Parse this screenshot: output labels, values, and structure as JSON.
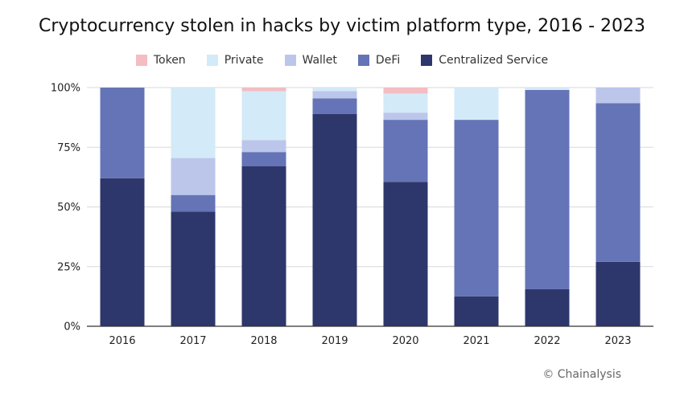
{
  "chart_data": {
    "type": "bar",
    "stacked": true,
    "normalized": true,
    "title": "Cryptocurrency stolen in hacks by victim platform type, 2016 - 2023",
    "categories": [
      "2016",
      "2017",
      "2018",
      "2019",
      "2020",
      "2021",
      "2022",
      "2023"
    ],
    "y_ticks": [
      "0%",
      "25%",
      "50%",
      "75%",
      "100%"
    ],
    "ylim": [
      0,
      100
    ],
    "grid": true,
    "legend_position": "top",
    "series": [
      {
        "name": "Centralized Service",
        "color": "#2d376b",
        "values": [
          62,
          48,
          67,
          89,
          60.5,
          12.5,
          15.5,
          27
        ]
      },
      {
        "name": "DeFi",
        "color": "#6474b6",
        "values": [
          38,
          7,
          6,
          6.5,
          26,
          74,
          83.5,
          66.5
        ]
      },
      {
        "name": "Wallet",
        "color": "#bcc6ea",
        "values": [
          0,
          15.5,
          5,
          3,
          3,
          0,
          0,
          6.5
        ]
      },
      {
        "name": "Private",
        "color": "#d3eaf8",
        "values": [
          0,
          29.5,
          20.5,
          1.5,
          8,
          13.5,
          1,
          0
        ]
      },
      {
        "name": "Token",
        "color": "#f3bdc2",
        "values": [
          0,
          0,
          1.5,
          0,
          2.5,
          0,
          0,
          0
        ]
      }
    ],
    "legend_order": [
      "Token",
      "Private",
      "Wallet",
      "DeFi",
      "Centralized Service"
    ]
  },
  "credit": "© Chainalysis"
}
